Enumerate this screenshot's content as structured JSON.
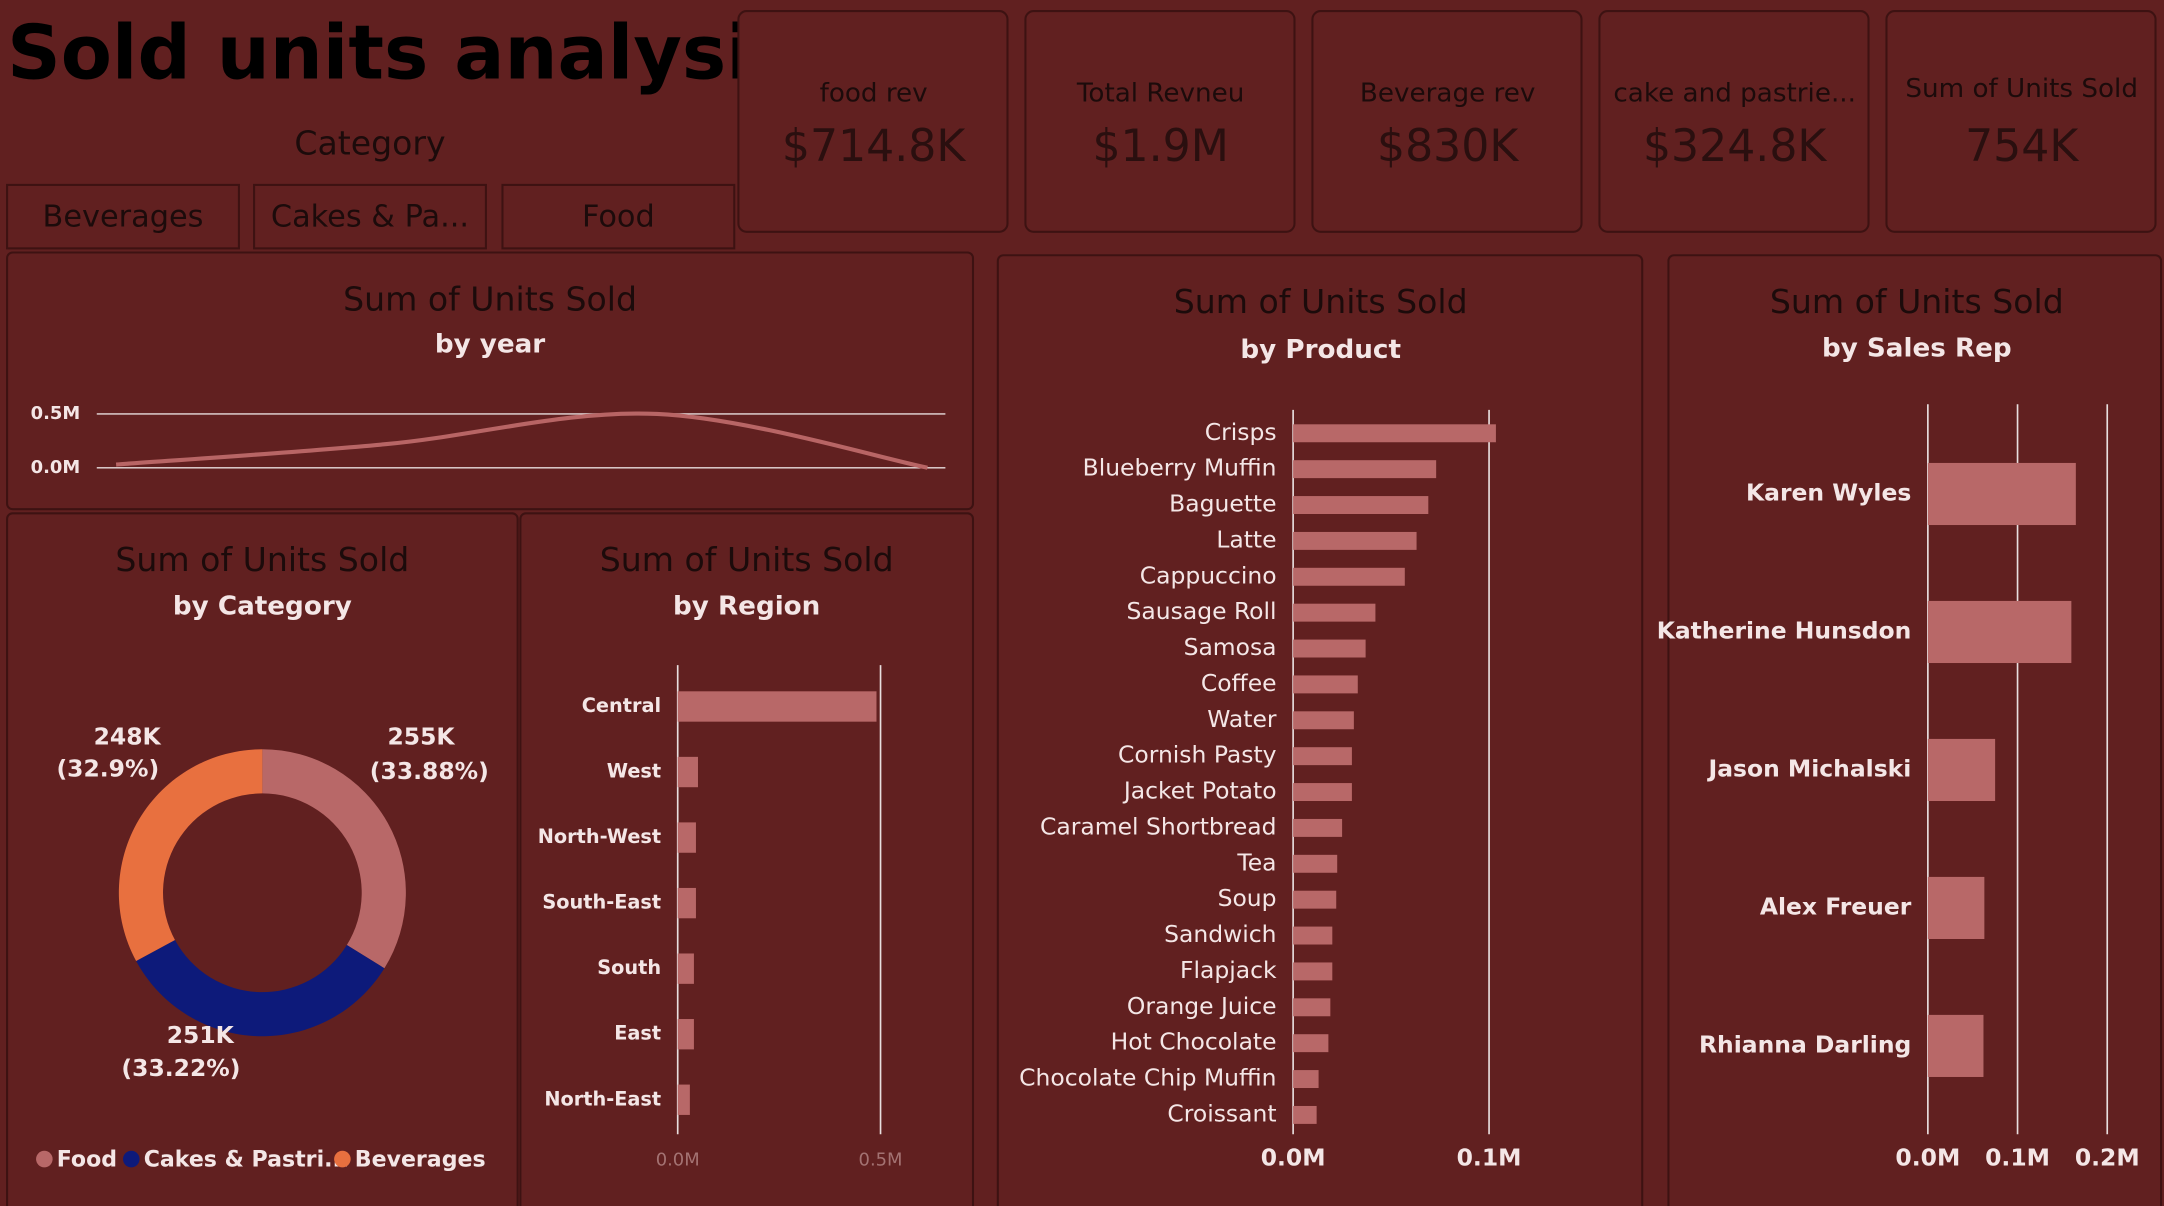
{
  "title": "Sold units analysis",
  "slicer": {
    "header": "Category",
    "options": [
      "Beverages",
      "Cakes & Pa...",
      "Food"
    ]
  },
  "cards": [
    {
      "label": "food rev",
      "value": "$714.8K"
    },
    {
      "label": "Total Revneu",
      "value": "$1.9M"
    },
    {
      "label": "Beverage rev",
      "value": "$830K"
    },
    {
      "label": "cake and pastrie...",
      "value": "$324.8K"
    },
    {
      "label": "Sum of Units Sold",
      "value": "754K"
    }
  ],
  "chart_data": [
    {
      "type": "line",
      "title": "Sum of Units Sold",
      "subtitle": "by year",
      "categories": [
        null,
        null,
        null,
        null
      ],
      "values": [
        0.03,
        0.22,
        0.5,
        0.0
      ],
      "color": "#b86565",
      "ylim": [
        0,
        0.5
      ],
      "yticks": [
        {
          "value": 0,
          "label": "0.0M"
        },
        {
          "value": 0.5,
          "label": "0.5M"
        }
      ],
      "grid": true
    },
    {
      "type": "pie",
      "title": "Sum of Units Sold",
      "subtitle": "by Category",
      "categories": [
        "Food",
        "Cakes & Pastri...",
        "Beverages"
      ],
      "values": [
        255,
        251,
        248
      ],
      "value_labels": [
        "255K",
        "251K",
        "248K"
      ],
      "percent_labels": [
        "(33.88%)",
        "(33.22%)",
        "(32.9%)"
      ],
      "colors": [
        "#b86868",
        "#0d1a7a",
        "#e8703f"
      ],
      "legend": "bottom"
    },
    {
      "type": "hbar",
      "title": "Sum of Units Sold",
      "subtitle": "by Region",
      "categories": [
        "Central",
        "West",
        "North-West",
        "South-East",
        "South",
        "East",
        "North-East"
      ],
      "values": [
        0.49,
        0.05,
        0.045,
        0.045,
        0.04,
        0.04,
        0.03
      ],
      "color": "#b86868",
      "xlim": [
        0,
        0.5
      ],
      "xticks": [
        {
          "value": 0,
          "label": "0.0M"
        },
        {
          "value": 0.5,
          "label": "0.5M"
        }
      ],
      "grid": true
    },
    {
      "type": "hbar",
      "title": "Sum of Units Sold",
      "subtitle": "by Product",
      "categories": [
        "Crisps",
        "Blueberry Muffin",
        "Baguette",
        "Latte",
        "Cappuccino",
        "Sausage Roll",
        "Samosa",
        "Coffee",
        "Water",
        "Cornish Pasty",
        "Jacket Potato",
        "Caramel Shortbread",
        "Tea",
        "Soup",
        "Sandwich",
        "Flapjack",
        "Orange Juice",
        "Hot Chocolate",
        "Chocolate Chip Muffin",
        "Croissant"
      ],
      "values": [
        0.1035,
        0.073,
        0.069,
        0.063,
        0.057,
        0.042,
        0.037,
        0.033,
        0.031,
        0.03,
        0.03,
        0.025,
        0.0225,
        0.022,
        0.02,
        0.02,
        0.019,
        0.018,
        0.013,
        0.012
      ],
      "color": "#b86868",
      "xlim": [
        0,
        0.1
      ],
      "xticks": [
        {
          "value": 0,
          "label": "0.0M"
        },
        {
          "value": 0.1,
          "label": "0.1M"
        }
      ],
      "grid": true
    },
    {
      "type": "hbar",
      "title": "Sum of Units Sold",
      "subtitle": "by Sales Rep",
      "categories": [
        "Karen Wyles",
        "Katherine Hunsdon",
        "Jason Michalski",
        "Alex Freuer",
        "Rhianna Darling"
      ],
      "values": [
        0.165,
        0.16,
        0.075,
        0.063,
        0.062
      ],
      "color": "#b86868",
      "xlim": [
        0,
        0.2
      ],
      "xticks": [
        {
          "value": 0,
          "label": "0.0M"
        },
        {
          "value": 0.1,
          "label": "0.1M"
        },
        {
          "value": 0.2,
          "label": "0.2M"
        }
      ],
      "grid": true
    }
  ]
}
